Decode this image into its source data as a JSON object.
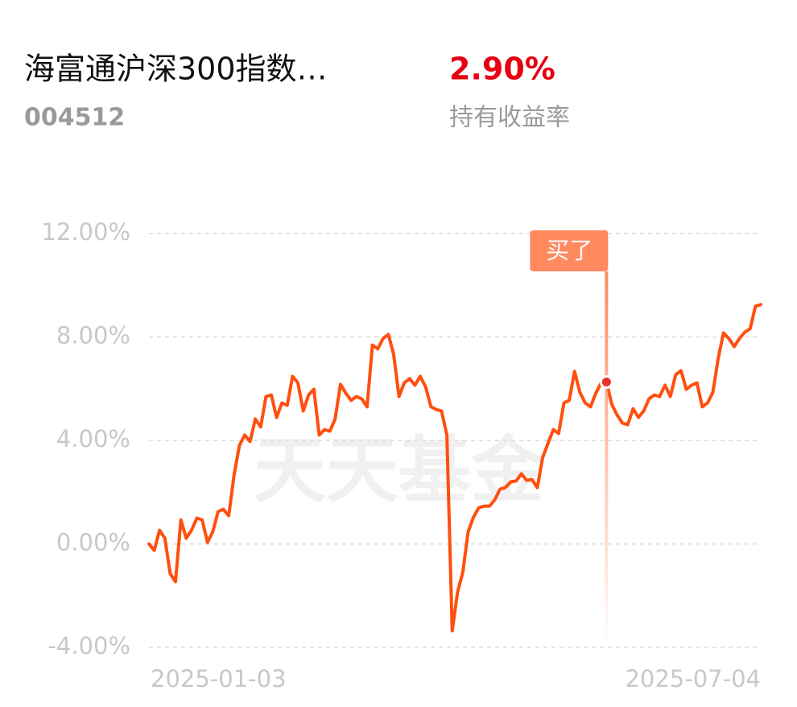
{
  "header": {
    "title": "海富通沪深300指数…",
    "code": "004512",
    "return": "2.90%",
    "return_label": "持有收益率"
  },
  "chart_data": {
    "type": "line",
    "watermark": "天天基金",
    "color": "#ff4f0f",
    "categories": [
      "2025-01-03",
      null,
      null,
      null,
      null,
      null,
      null,
      null,
      null,
      null,
      null,
      null,
      null,
      null,
      null,
      null,
      null,
      null,
      null,
      null,
      null,
      null,
      null,
      null,
      null,
      null,
      null,
      null,
      null,
      null,
      null,
      null,
      null,
      null,
      null,
      null,
      null,
      null,
      null,
      null,
      null,
      null,
      null,
      null,
      null,
      null,
      null,
      null,
      null,
      null,
      null,
      null,
      null,
      null,
      null,
      null,
      null,
      null,
      null,
      null,
      null,
      null,
      null,
      null,
      null,
      null,
      null,
      null,
      null,
      null,
      null,
      null,
      null,
      null,
      null,
      null,
      null,
      null,
      null,
      null,
      null,
      null,
      null,
      null,
      null,
      null,
      null,
      null,
      null,
      null,
      null,
      null,
      null,
      null,
      null,
      null,
      null,
      null,
      null,
      null,
      null,
      null,
      null,
      null,
      null,
      null,
      null,
      null,
      null,
      null,
      null,
      null,
      null,
      null,
      null,
      "2025-07-04"
    ],
    "values": [
      0,
      -0.25,
      0.53,
      0.22,
      -1.15,
      -1.46,
      0.93,
      0.22,
      0.53,
      1.0,
      0.93,
      0.06,
      0.47,
      1.25,
      1.34,
      1.09,
      2.65,
      3.8,
      4.21,
      3.96,
      4.83,
      4.52,
      5.7,
      5.76,
      4.89,
      5.45,
      5.36,
      6.48,
      6.23,
      5.14,
      5.76,
      5.98,
      4.21,
      4.42,
      4.36,
      4.83,
      6.17,
      5.83,
      5.55,
      5.7,
      5.61,
      5.3,
      7.69,
      7.54,
      7.94,
      8.1,
      7.32,
      5.7,
      6.23,
      6.39,
      6.14,
      6.48,
      6.07,
      5.3,
      5.2,
      5.14,
      4.21,
      -3.36,
      -1.87,
      -1.09,
      0.47,
      1.03,
      1.4,
      1.46,
      1.46,
      1.71,
      2.12,
      2.18,
      2.4,
      2.43,
      2.71,
      2.46,
      2.49,
      2.18,
      3.33,
      3.89,
      4.42,
      4.27,
      5.45,
      5.55,
      6.67,
      5.86,
      5.45,
      5.3,
      5.83,
      6.23,
      6.26,
      5.39,
      4.98,
      4.67,
      4.61,
      5.23,
      4.89,
      5.14,
      5.61,
      5.76,
      5.7,
      6.14,
      5.7,
      6.54,
      6.7,
      5.98,
      6.14,
      6.23,
      5.3,
      5.45,
      5.86,
      7.17,
      8.16,
      7.94,
      7.63,
      7.94,
      8.19,
      8.32,
      9.19,
      9.25
    ],
    "ylim": [
      -4,
      12
    ],
    "yticks": [
      {
        "value": 12,
        "label": "12.00%"
      },
      {
        "value": 8,
        "label": "8.00%"
      },
      {
        "value": 4,
        "label": "4.00%"
      },
      {
        "value": 0,
        "label": "0.00%"
      },
      {
        "value": -4,
        "label": "-4.00%"
      }
    ],
    "grid": true,
    "annotations": [
      {
        "label": "买了",
        "index": 86
      }
    ]
  }
}
